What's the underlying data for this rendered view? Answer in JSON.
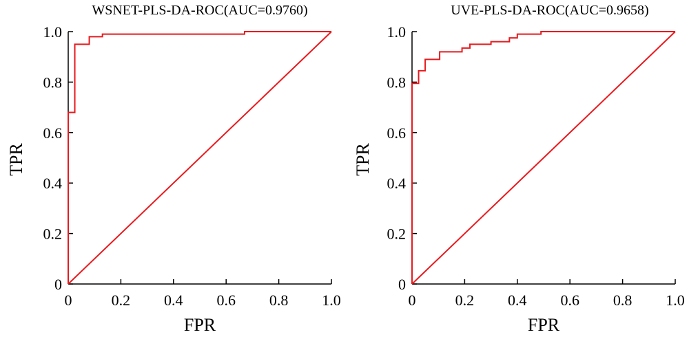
{
  "figure": {
    "colors": {
      "curve": "#e8191d",
      "axis": "#000000",
      "background": "#ffffff"
    }
  },
  "chart_data": [
    {
      "type": "line",
      "title": "WSNET-PLS-DA-ROC(AUC=0.9760)",
      "xlabel": "FPR",
      "ylabel": "TPR",
      "xlim": [
        0,
        1
      ],
      "ylim": [
        0,
        1
      ],
      "x_ticks": [
        "0",
        "0.2",
        "0.4",
        "0.6",
        "0.8",
        "1.0"
      ],
      "y_ticks": [
        "0",
        "0.2",
        "0.4",
        "0.6",
        "0.8",
        "1.0"
      ],
      "grid": false,
      "series": [
        {
          "x": [
            0,
            0,
            0.025,
            0.025,
            0.08,
            0.08,
            0.13,
            0.13,
            0.67,
            0.67,
            1.0
          ],
          "y": [
            0,
            0.68,
            0.68,
            0.95,
            0.95,
            0.98,
            0.98,
            0.99,
            0.99,
            1.0,
            1.0
          ]
        },
        {
          "x": [
            0,
            1
          ],
          "y": [
            0,
            1
          ]
        }
      ]
    },
    {
      "type": "line",
      "title": "UVE-PLS-DA-ROC(AUC=0.9658)",
      "xlabel": "FPR",
      "ylabel": "TPR",
      "xlim": [
        0,
        1
      ],
      "ylim": [
        0,
        1
      ],
      "x_ticks": [
        "0",
        "0.2",
        "0.4",
        "0.6",
        "0.8",
        "1.0"
      ],
      "y_ticks": [
        "0",
        "0.2",
        "0.4",
        "0.6",
        "0.8",
        "1.0"
      ],
      "grid": false,
      "series": [
        {
          "x": [
            0,
            0,
            0.025,
            0.025,
            0.05,
            0.05,
            0.105,
            0.105,
            0.19,
            0.19,
            0.22,
            0.22,
            0.3,
            0.3,
            0.37,
            0.37,
            0.4,
            0.4,
            0.49,
            0.49,
            1.0
          ],
          "y": [
            0,
            0.795,
            0.795,
            0.845,
            0.845,
            0.89,
            0.89,
            0.92,
            0.92,
            0.935,
            0.935,
            0.95,
            0.95,
            0.96,
            0.96,
            0.975,
            0.975,
            0.99,
            0.99,
            1.0,
            1.0
          ]
        },
        {
          "x": [
            0,
            1
          ],
          "y": [
            0,
            1
          ]
        }
      ]
    }
  ]
}
